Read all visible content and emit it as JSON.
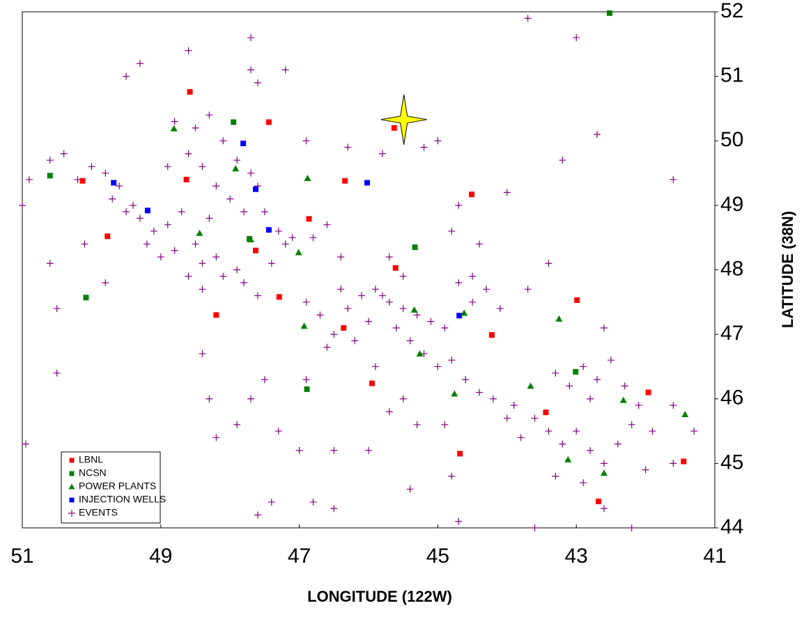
{
  "chart_data": {
    "type": "scatter",
    "x_label": "LONGITUDE (122W)",
    "y_label": "LATITUDE (38N)",
    "xlim": [
      51,
      41
    ],
    "ylim": [
      44,
      52
    ],
    "xticks": [
      51,
      49,
      47,
      45,
      43,
      41
    ],
    "yticks": [
      44,
      45,
      46,
      47,
      48,
      49,
      50,
      51,
      52
    ],
    "legend": "lower-left",
    "star": {
      "x": 45.49,
      "y": 50.33,
      "color": "#ffff00"
    },
    "series": [
      {
        "name": "LBNL",
        "color": "#ff0000",
        "marker": "square",
        "x": [
          48.58,
          47.44,
          45.63,
          50.13,
          48.63,
          46.34,
          44.51,
          46.86,
          49.77,
          47.63,
          45.61,
          47.29,
          42.99,
          48.2,
          46.36,
          44.22,
          45.95,
          41.96,
          43.44,
          44.68,
          41.45,
          42.68
        ],
        "y": [
          50.76,
          50.29,
          50.2,
          49.38,
          49.4,
          49.38,
          49.17,
          48.79,
          48.52,
          48.3,
          48.03,
          47.58,
          47.53,
          47.3,
          47.1,
          46.99,
          46.24,
          46.1,
          45.79,
          45.15,
          45.03,
          44.41
        ]
      },
      {
        "name": "NCSN",
        "color": "#008000",
        "marker": "square",
        "x": [
          42.52,
          50.6,
          47.95,
          50.08,
          47.72,
          45.33,
          46.89,
          43.01
        ],
        "y": [
          51.98,
          49.46,
          50.29,
          47.57,
          48.48,
          48.35,
          46.15,
          46.42
        ]
      },
      {
        "name": "POWER PLANTS",
        "color": "#008000",
        "marker": "triangle",
        "x": [
          48.81,
          47.92,
          46.88,
          48.44,
          47.01,
          46.93,
          45.34,
          44.62,
          43.25,
          45.26,
          43.66,
          44.76,
          42.32,
          41.43,
          43.12,
          42.6,
          47.7
        ],
        "y": [
          50.19,
          49.57,
          49.42,
          48.57,
          48.27,
          47.13,
          47.38,
          47.33,
          47.24,
          46.7,
          46.2,
          46.08,
          45.98,
          45.76,
          45.06,
          44.85,
          48.47
        ]
      },
      {
        "name": "INJECTION WELLS",
        "color": "#0000ff",
        "marker": "square",
        "x": [
          49.68,
          49.19,
          47.81,
          47.63,
          47.44,
          46.02,
          44.69
        ],
        "y": [
          49.35,
          48.92,
          49.96,
          49.25,
          48.62,
          49.35,
          47.29
        ]
      },
      {
        "name": "EVENTS",
        "color": "#800080",
        "marker": "plus",
        "x": [
          48.6,
          48.4,
          48.2,
          48.0,
          47.8,
          48.3,
          48.7,
          48.9,
          49.1,
          49.3,
          49.5,
          48.5,
          48.2,
          47.9,
          48.1,
          47.8,
          48.4,
          48.8,
          49.0,
          48.6,
          47.7,
          47.9,
          48.1,
          48.3,
          48.5,
          48.8,
          47.6,
          47.5,
          47.3,
          47.1,
          49.6,
          49.8,
          50.0,
          50.4,
          50.6,
          50.9,
          50.2,
          49.7,
          49.4,
          48.9,
          49.2,
          48.4,
          47.6,
          47.4,
          47.2,
          46.8,
          46.6,
          46.9,
          46.7,
          46.5,
          46.3,
          46.1,
          45.9,
          45.8,
          45.7,
          45.5,
          45.3,
          45.1,
          44.9,
          46.4,
          46.0,
          45.6,
          45.4,
          45.2,
          45.0,
          44.8,
          44.6,
          44.4,
          44.5,
          44.3,
          44.1,
          44.7,
          46.6,
          46.2,
          45.9,
          46.4,
          45.7,
          44.2,
          43.9,
          43.6,
          43.4,
          43.2,
          43.0,
          42.8,
          42.6,
          42.4,
          42.2,
          43.8,
          44.0,
          43.3,
          43.1,
          42.9,
          42.7,
          42.5,
          42.8,
          42.3,
          42.1,
          41.9,
          41.6,
          41.6,
          42.0,
          42.9,
          43.3,
          42.6,
          42.2,
          43.6,
          51.0,
          50.95,
          50.5,
          50.5,
          50.6,
          50.1,
          49.8,
          49.5,
          49.3,
          48.6,
          47.7,
          47.7,
          47.2,
          47.6,
          46.9,
          46.3,
          45.8,
          45.2,
          45.0,
          44.7,
          44.4,
          44.0,
          42.7,
          43.0,
          43.7,
          43.2,
          41.6,
          42.6,
          43.7,
          43.4,
          44.8,
          45.5,
          46.5,
          46.0,
          45.7,
          45.5,
          45.3,
          44.9,
          44.8,
          45.4,
          46.5,
          46.8,
          47.6,
          47.4,
          47.0,
          47.3,
          47.7,
          47.9,
          48.2,
          48.3,
          48.4,
          47.5,
          46.9,
          44.7,
          41.3,
          44.5
        ],
        "y": [
          49.8,
          49.6,
          49.3,
          49.1,
          48.9,
          48.8,
          48.9,
          48.7,
          48.6,
          48.8,
          48.9,
          48.4,
          48.2,
          48.0,
          47.9,
          47.8,
          48.1,
          48.3,
          48.2,
          47.9,
          49.5,
          49.7,
          50.0,
          50.4,
          50.2,
          50.3,
          49.3,
          48.9,
          48.6,
          48.5,
          49.3,
          49.5,
          49.6,
          49.8,
          49.7,
          49.4,
          49.4,
          49.1,
          49.0,
          49.6,
          48.4,
          47.7,
          47.6,
          48.1,
          48.4,
          48.5,
          48.7,
          47.5,
          47.3,
          47.0,
          47.4,
          47.6,
          47.7,
          47.6,
          47.5,
          47.4,
          47.3,
          47.2,
          47.1,
          47.7,
          47.2,
          47.1,
          46.9,
          46.7,
          46.5,
          46.6,
          46.3,
          46.1,
          47.5,
          47.7,
          47.4,
          47.8,
          46.8,
          46.9,
          46.5,
          48.2,
          48.2,
          46.0,
          45.9,
          45.7,
          45.5,
          45.3,
          45.5,
          45.2,
          45.0,
          45.3,
          45.6,
          45.4,
          45.7,
          46.4,
          46.2,
          46.5,
          46.3,
          46.6,
          46.0,
          46.2,
          45.9,
          45.5,
          45.9,
          45.0,
          44.9,
          44.7,
          44.8,
          44.3,
          44.0,
          44.0,
          49.0,
          45.3,
          46.4,
          47.4,
          48.1,
          48.4,
          47.8,
          51.0,
          51.2,
          51.4,
          51.1,
          51.6,
          51.1,
          50.9,
          50.0,
          49.9,
          49.8,
          49.9,
          50.0,
          49.0,
          48.4,
          49.2,
          50.1,
          51.6,
          51.9,
          49.7,
          49.4,
          47.1,
          47.7,
          48.1,
          48.6,
          47.9,
          45.2,
          45.2,
          45.8,
          46.0,
          45.6,
          45.6,
          44.8,
          44.6,
          44.3,
          44.4,
          44.2,
          44.4,
          45.2,
          45.5,
          46.0,
          45.6,
          45.4,
          46.0,
          46.7,
          46.3,
          46.3,
          44.1,
          45.5,
          47.9
        ]
      }
    ]
  }
}
